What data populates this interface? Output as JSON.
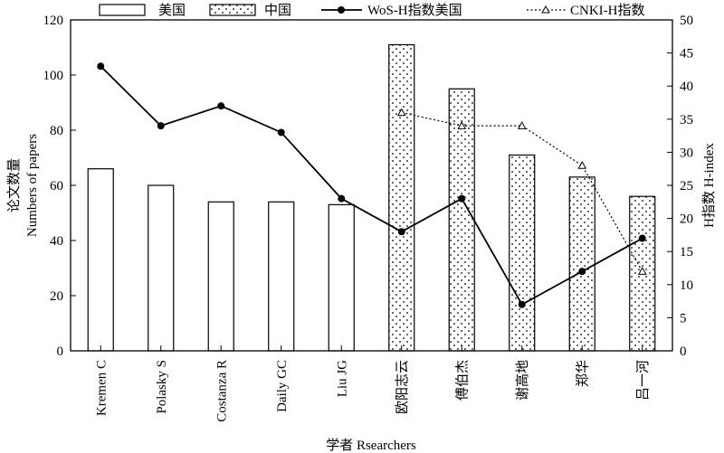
{
  "chart_data": {
    "type": "bar",
    "categories": [
      "Kremen C",
      "Polasky S",
      "Costanza R",
      "Daily GC",
      "Liu JG",
      "欧阳志云",
      "傅伯杰",
      "谢高地",
      "郑华",
      "吕一河"
    ],
    "xlabel": "学者 Rsearchers",
    "ylabel": [
      "论文数量",
      "Numbers of papers"
    ],
    "y2label": "H指数 H-index",
    "ylim": [
      0,
      120
    ],
    "y2lim": [
      0,
      50
    ],
    "yticks": [
      0,
      20,
      40,
      60,
      80,
      100,
      120
    ],
    "y2ticks": [
      0,
      5,
      10,
      15,
      20,
      25,
      30,
      35,
      40,
      45,
      50
    ],
    "bars": [
      {
        "name": "美国",
        "pattern": "open",
        "values": [
          66,
          60,
          54,
          54,
          53,
          null,
          null,
          null,
          null,
          null
        ]
      },
      {
        "name": "中国",
        "pattern": "dotted",
        "values": [
          null,
          null,
          null,
          null,
          null,
          111,
          95,
          71,
          63,
          56
        ]
      }
    ],
    "lines": [
      {
        "name": "WoS-H指数美国",
        "axis": "y2",
        "style": "solid",
        "marker": "circle",
        "values": [
          43,
          34,
          37,
          33,
          23,
          18,
          23,
          7,
          12,
          17
        ]
      },
      {
        "name": "CNKI-H指数",
        "axis": "y2",
        "style": "dotted",
        "marker": "triangle",
        "values": [
          null,
          null,
          null,
          null,
          null,
          36,
          34,
          34,
          28,
          12
        ]
      }
    ],
    "legend_position": "top"
  }
}
